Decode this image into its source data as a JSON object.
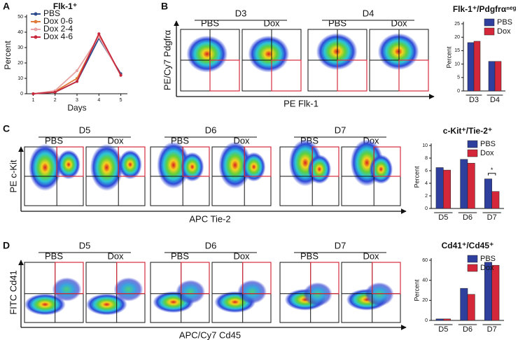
{
  "panel_labels": [
    "A",
    "B",
    "C",
    "D"
  ],
  "chart_data": [
    {
      "type": "line",
      "title": "Flk-1⁺",
      "x_label": "Days",
      "y_label": "Percent",
      "x": [
        1,
        2,
        3,
        4,
        5
      ],
      "xlim": [
        0.7,
        5.3
      ],
      "xticks": [
        1,
        2,
        3,
        4,
        5
      ],
      "ylim": [
        0,
        50
      ],
      "yticks": [
        0,
        10,
        20,
        30,
        40,
        50
      ],
      "series": [
        {
          "name": "PBS",
          "color": "#2c4a8c",
          "values": [
            0,
            1,
            8,
            36,
            13
          ]
        },
        {
          "name": "Dox 0-6",
          "color": "#e07a3a",
          "values": [
            0,
            1.5,
            10,
            38,
            12
          ]
        },
        {
          "name": "Dox 2-4",
          "color": "#e8a4a4",
          "values": [
            0,
            2,
            15,
            37,
            12
          ]
        },
        {
          "name": "Dox 4-6",
          "color": "#c8283c",
          "values": [
            0,
            1,
            8,
            39,
            12
          ]
        }
      ]
    },
    {
      "type": "bar",
      "title": "Flk-1⁺/Pdgfrαⁿᵉᵍ",
      "y_label": "Percent",
      "categories": [
        "D3",
        "D4"
      ],
      "ylim": [
        0,
        25
      ],
      "yticks": [
        0,
        5,
        10,
        15,
        20,
        25
      ],
      "series": [
        {
          "name": "PBS",
          "color": "#2e3f9e",
          "values": [
            18,
            11
          ]
        },
        {
          "name": "Dox",
          "color": "#d4283a",
          "values": [
            18.5,
            11
          ]
        }
      ]
    },
    {
      "type": "bar",
      "title": "c-Kit⁺/Tie-2⁺",
      "y_label": "Percent",
      "categories": [
        "D5",
        "D6",
        "D7"
      ],
      "ylim": [
        0,
        10
      ],
      "yticks": [
        0,
        2,
        4,
        6,
        8,
        10
      ],
      "annotation": "*",
      "series": [
        {
          "name": "PBS",
          "color": "#2e3f9e",
          "values": [
            6.5,
            7.8,
            4.7
          ]
        },
        {
          "name": "Dox",
          "color": "#d4283a",
          "values": [
            6.1,
            7.2,
            2.7
          ]
        }
      ]
    },
    {
      "type": "bar",
      "title": "Cd41⁺/Cd45⁺",
      "y_label": "Percent",
      "categories": [
        "D5",
        "D6",
        "D7"
      ],
      "ylim": [
        0,
        60
      ],
      "yticks": [
        0,
        20,
        40,
        60
      ],
      "series": [
        {
          "name": "PBS",
          "color": "#2e3f9e",
          "values": [
            1.5,
            32,
            58
          ]
        },
        {
          "name": "Dox",
          "color": "#d4283a",
          "values": [
            1.5,
            26,
            55
          ]
        }
      ]
    }
  ],
  "flow": [
    {
      "y_label": "PE/Cy7 Pdgfrα",
      "x_label": "PE Flk-1",
      "groups": [
        {
          "label": "D3",
          "conditions": [
            "PBS",
            "Dox"
          ]
        },
        {
          "label": "D4",
          "conditions": [
            "PBS",
            "Dox"
          ]
        }
      ]
    },
    {
      "y_label": "PE c-Kit",
      "x_label": "APC Tie-2",
      "groups": [
        {
          "label": "D5",
          "conditions": [
            "PBS",
            "Dox"
          ]
        },
        {
          "label": "D6",
          "conditions": [
            "PBS",
            "Dox"
          ]
        },
        {
          "label": "D7",
          "conditions": [
            "PBS",
            "Dox"
          ]
        }
      ]
    },
    {
      "y_label": "FITC Cd41",
      "x_label": "APC/Cy7 Cd45",
      "groups": [
        {
          "label": "D5",
          "conditions": [
            "PBS",
            "Dox"
          ]
        },
        {
          "label": "D6",
          "conditions": [
            "PBS",
            "Dox"
          ]
        },
        {
          "label": "D7",
          "conditions": [
            "PBS",
            "Dox"
          ]
        }
      ]
    }
  ]
}
